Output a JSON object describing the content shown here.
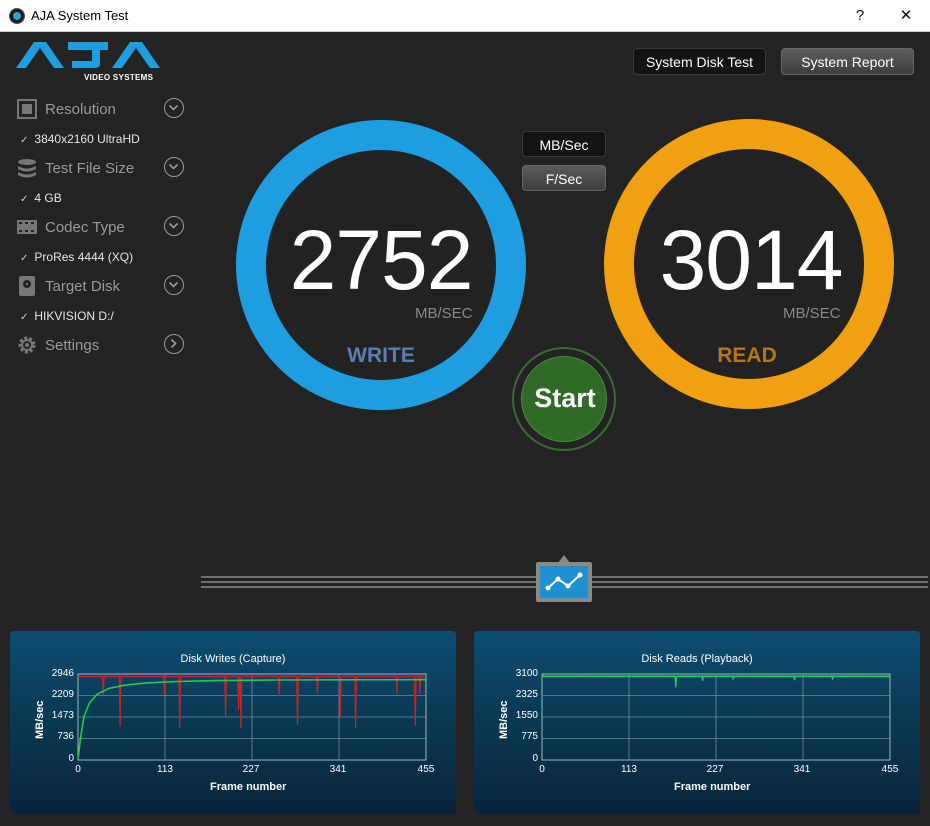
{
  "window": {
    "title": "AJA System Test",
    "help": "?",
    "close": "✕"
  },
  "logo": {
    "text": "AJA",
    "sub": "VIDEO SYSTEMS"
  },
  "sidebar": {
    "items": [
      {
        "label": "Resolution",
        "value": "3840x2160 UltraHD",
        "icon": "resolution-icon"
      },
      {
        "label": "Test File Size",
        "value": "4 GB",
        "icon": "stack-icon"
      },
      {
        "label": "Codec Type",
        "value": "ProRes 4444 (XQ)",
        "icon": "film-icon"
      },
      {
        "label": "Target Disk",
        "value": "HIKVISION D:/",
        "icon": "disk-icon"
      },
      {
        "label": "Settings",
        "value": null,
        "icon": "gear-icon"
      }
    ],
    "check": "✓"
  },
  "buttons": {
    "system_disk_test": "System Disk Test",
    "system_report": "System Report",
    "mb_sec": "MB/Sec",
    "f_sec": "F/Sec",
    "start": "Start"
  },
  "write": {
    "value": "2752",
    "unit": "MB/SEC",
    "label": "WRITE",
    "color": "#1e9ee0",
    "label_color": "#5a7fb0"
  },
  "read": {
    "value": "3014",
    "unit": "MB/SEC",
    "label": "READ",
    "color": "#f0a010",
    "label_color": "#b5761a"
  },
  "chart_data": [
    {
      "type": "line",
      "title": "Disk Writes (Capture)",
      "xlabel": "Frame number",
      "ylabel": "MB/sec",
      "xticks": [
        "0",
        "113",
        "227",
        "341",
        "455"
      ],
      "yticks": [
        "0",
        "736",
        "1473",
        "2209",
        "2946"
      ],
      "xlim": [
        0,
        455
      ],
      "ylim": [
        0,
        2946
      ],
      "series": [
        {
          "role": "per-frame",
          "color": "#cc2222",
          "baseline": 2860,
          "dips": [
            [
              33,
              2200
            ],
            [
              55,
              1150
            ],
            [
              113,
              2250
            ],
            [
              133,
              1100
            ],
            [
              193,
              1500
            ],
            [
              210,
              1700
            ],
            [
              213,
              1100
            ],
            [
              263,
              2200
            ],
            [
              287,
              1200
            ],
            [
              313,
              2300
            ],
            [
              343,
              1500
            ],
            [
              363,
              1100
            ],
            [
              417,
              2300
            ],
            [
              441,
              1150
            ],
            [
              447,
              2250
            ]
          ]
        },
        {
          "role": "average",
          "color": "#22cc44",
          "points": [
            [
              0,
              0
            ],
            [
              3,
              700
            ],
            [
              8,
              1500
            ],
            [
              15,
              1950
            ],
            [
              25,
              2250
            ],
            [
              40,
              2450
            ],
            [
              60,
              2560
            ],
            [
              90,
              2640
            ],
            [
              130,
              2690
            ],
            [
              180,
              2720
            ],
            [
              260,
              2740
            ],
            [
              350,
              2748
            ],
            [
              455,
              2752
            ]
          ]
        }
      ]
    },
    {
      "type": "line",
      "title": "Disk Reads (Playback)",
      "xlabel": "Frame number",
      "ylabel": "MB/sec",
      "xticks": [
        "0",
        "113",
        "227",
        "341",
        "455"
      ],
      "yticks": [
        "0",
        "775",
        "1550",
        "2325",
        "3100"
      ],
      "xlim": [
        0,
        455
      ],
      "ylim": [
        0,
        3100
      ],
      "series": [
        {
          "role": "per-frame",
          "color": "#22cc66",
          "baseline": 3020,
          "dips": [
            [
              175,
              2620
            ],
            [
              210,
              2850
            ],
            [
              250,
              2900
            ],
            [
              330,
              2880
            ],
            [
              380,
              2900
            ]
          ]
        },
        {
          "role": "average",
          "color": "#22cc44",
          "points": [
            [
              0,
              3014
            ],
            [
              455,
              3014
            ]
          ]
        }
      ]
    }
  ]
}
